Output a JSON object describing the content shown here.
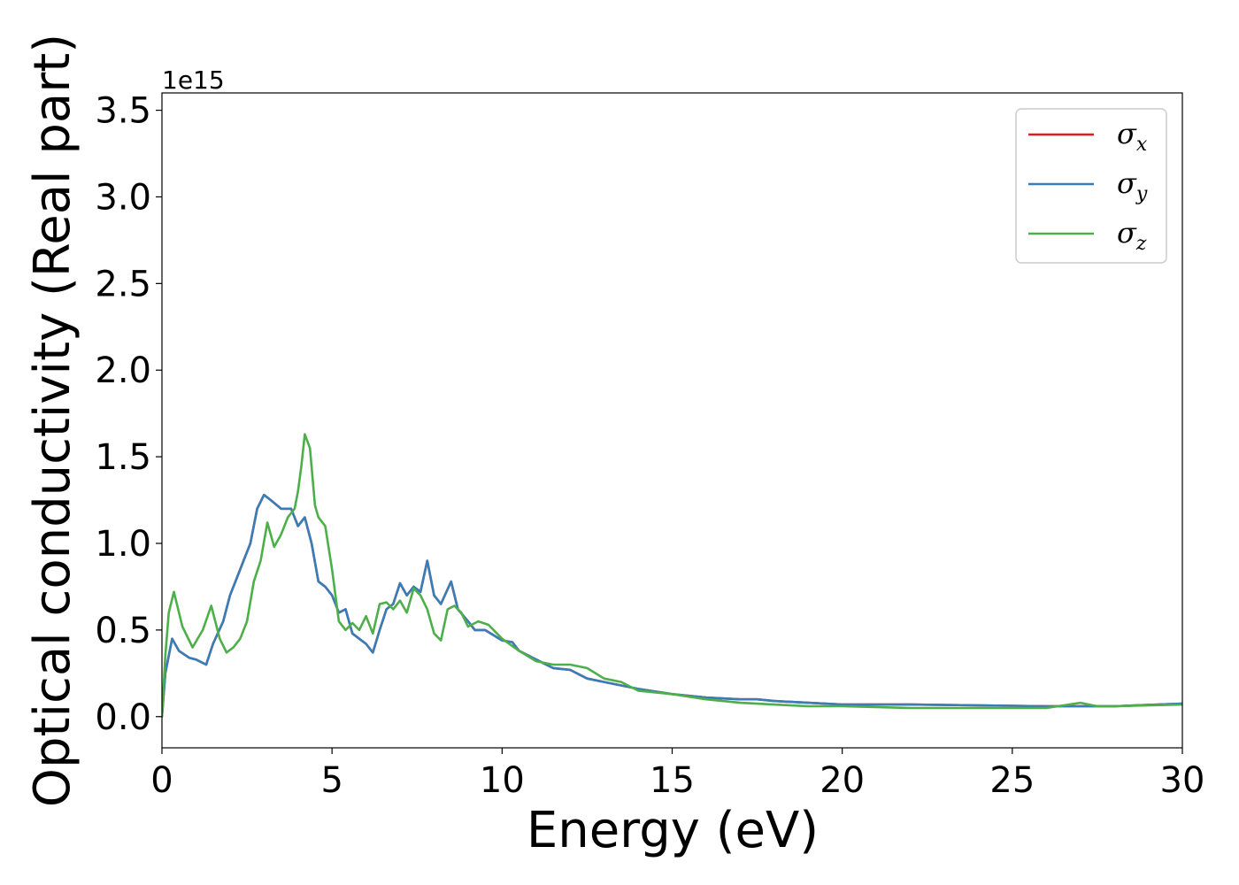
{
  "chart_data": {
    "type": "line",
    "title": "",
    "xlabel": "Energy (eV)",
    "ylabel": "Optical conductivity (Real part)",
    "y_offset_label": "1e15",
    "xlim": [
      0,
      30
    ],
    "ylim": [
      -0.18,
      3.6
    ],
    "grid": false,
    "legend_position": "top-right",
    "x_ticks": [
      0,
      5,
      10,
      15,
      20,
      25,
      30
    ],
    "x_tick_labels": [
      "0",
      "5",
      "10",
      "15",
      "20",
      "25",
      "30"
    ],
    "y_ticks": [
      0.0,
      0.5,
      1.0,
      1.5,
      2.0,
      2.5,
      3.0,
      3.5
    ],
    "y_tick_labels": [
      "0.0",
      "0.5",
      "1.0",
      "1.5",
      "2.0",
      "2.5",
      "3.0",
      "3.5"
    ],
    "series": [
      {
        "name": "σx",
        "legend_base": "σ",
        "legend_sub": "x",
        "color": "#e41a1c",
        "x": [
          0,
          0.1,
          0.3,
          0.5,
          0.8,
          1.0,
          1.3,
          1.5,
          1.8,
          2.0,
          2.2,
          2.4,
          2.6,
          2.8,
          3.0,
          3.2,
          3.5,
          3.8,
          4.0,
          4.2,
          4.4,
          4.6,
          4.8,
          5.0,
          5.2,
          5.4,
          5.6,
          5.8,
          6.0,
          6.2,
          6.4,
          6.6,
          6.8,
          7.0,
          7.2,
          7.4,
          7.6,
          7.8,
          8.0,
          8.2,
          8.5,
          8.7,
          9.0,
          9.2,
          9.5,
          10.0,
          10.3,
          10.5,
          11.0,
          11.5,
          12.0,
          12.5,
          13.0,
          14.0,
          15.0,
          16.0,
          17.0,
          17.5,
          18.0,
          19.0,
          20.0,
          22.0,
          24.0,
          26.0,
          28.0,
          30.0
        ],
        "values": [
          0.0,
          0.25,
          0.45,
          0.38,
          0.34,
          0.33,
          0.3,
          0.42,
          0.55,
          0.7,
          0.8,
          0.9,
          1.0,
          1.2,
          1.28,
          1.25,
          1.2,
          1.2,
          1.1,
          1.15,
          1.0,
          0.78,
          0.75,
          0.7,
          0.6,
          0.62,
          0.48,
          0.45,
          0.42,
          0.37,
          0.5,
          0.62,
          0.65,
          0.77,
          0.7,
          0.75,
          0.72,
          0.9,
          0.7,
          0.65,
          0.78,
          0.62,
          0.55,
          0.5,
          0.5,
          0.44,
          0.43,
          0.38,
          0.33,
          0.28,
          0.27,
          0.22,
          0.2,
          0.16,
          0.13,
          0.11,
          0.1,
          0.1,
          0.09,
          0.08,
          0.07,
          0.07,
          0.065,
          0.06,
          0.06,
          0.075
        ]
      },
      {
        "name": "σy",
        "legend_base": "σ",
        "legend_sub": "y",
        "color": "#377eb8",
        "x": [
          0,
          0.1,
          0.3,
          0.5,
          0.8,
          1.0,
          1.3,
          1.5,
          1.8,
          2.0,
          2.2,
          2.4,
          2.6,
          2.8,
          3.0,
          3.2,
          3.5,
          3.8,
          4.0,
          4.2,
          4.4,
          4.6,
          4.8,
          5.0,
          5.2,
          5.4,
          5.6,
          5.8,
          6.0,
          6.2,
          6.4,
          6.6,
          6.8,
          7.0,
          7.2,
          7.4,
          7.6,
          7.8,
          8.0,
          8.2,
          8.5,
          8.7,
          9.0,
          9.2,
          9.5,
          10.0,
          10.3,
          10.5,
          11.0,
          11.5,
          12.0,
          12.5,
          13.0,
          14.0,
          15.0,
          16.0,
          17.0,
          17.5,
          18.0,
          19.0,
          20.0,
          22.0,
          24.0,
          26.0,
          28.0,
          30.0
        ],
        "values": [
          0.0,
          0.25,
          0.45,
          0.38,
          0.34,
          0.33,
          0.3,
          0.42,
          0.55,
          0.7,
          0.8,
          0.9,
          1.0,
          1.2,
          1.28,
          1.25,
          1.2,
          1.2,
          1.1,
          1.15,
          1.0,
          0.78,
          0.75,
          0.7,
          0.6,
          0.62,
          0.48,
          0.45,
          0.42,
          0.37,
          0.5,
          0.62,
          0.65,
          0.77,
          0.7,
          0.75,
          0.72,
          0.9,
          0.7,
          0.65,
          0.78,
          0.62,
          0.55,
          0.5,
          0.5,
          0.44,
          0.43,
          0.38,
          0.33,
          0.28,
          0.27,
          0.22,
          0.2,
          0.16,
          0.13,
          0.11,
          0.1,
          0.1,
          0.09,
          0.08,
          0.07,
          0.07,
          0.065,
          0.06,
          0.06,
          0.075
        ]
      },
      {
        "name": "σz",
        "legend_base": "σ",
        "legend_sub": "z",
        "color": "#4daf4a",
        "x": [
          0,
          0.1,
          0.2,
          0.35,
          0.6,
          0.9,
          1.2,
          1.45,
          1.7,
          1.9,
          2.1,
          2.3,
          2.5,
          2.7,
          2.9,
          3.1,
          3.3,
          3.5,
          3.7,
          3.9,
          4.0,
          4.1,
          4.2,
          4.35,
          4.5,
          4.6,
          4.8,
          5.0,
          5.2,
          5.4,
          5.6,
          5.8,
          6.0,
          6.2,
          6.4,
          6.6,
          6.8,
          7.0,
          7.2,
          7.4,
          7.6,
          7.8,
          8.0,
          8.2,
          8.4,
          8.6,
          8.8,
          9.0,
          9.3,
          9.6,
          10.0,
          10.5,
          11.0,
          11.5,
          12.0,
          12.5,
          13.0,
          13.5,
          14.0,
          15.0,
          16.0,
          17.0,
          18.0,
          19.0,
          20.0,
          22.0,
          24.0,
          26.0,
          27.0,
          27.5,
          28.0,
          30.0
        ],
        "values": [
          0.0,
          0.35,
          0.6,
          0.72,
          0.52,
          0.4,
          0.5,
          0.64,
          0.45,
          0.37,
          0.4,
          0.45,
          0.55,
          0.78,
          0.9,
          1.12,
          0.98,
          1.05,
          1.15,
          1.2,
          1.3,
          1.45,
          1.63,
          1.55,
          1.22,
          1.15,
          1.1,
          0.85,
          0.55,
          0.5,
          0.54,
          0.5,
          0.58,
          0.48,
          0.65,
          0.66,
          0.62,
          0.67,
          0.6,
          0.74,
          0.7,
          0.62,
          0.48,
          0.44,
          0.62,
          0.64,
          0.6,
          0.52,
          0.55,
          0.53,
          0.45,
          0.38,
          0.32,
          0.3,
          0.3,
          0.28,
          0.22,
          0.2,
          0.15,
          0.13,
          0.1,
          0.08,
          0.07,
          0.06,
          0.06,
          0.05,
          0.05,
          0.05,
          0.08,
          0.06,
          0.06,
          0.07
        ]
      }
    ]
  }
}
